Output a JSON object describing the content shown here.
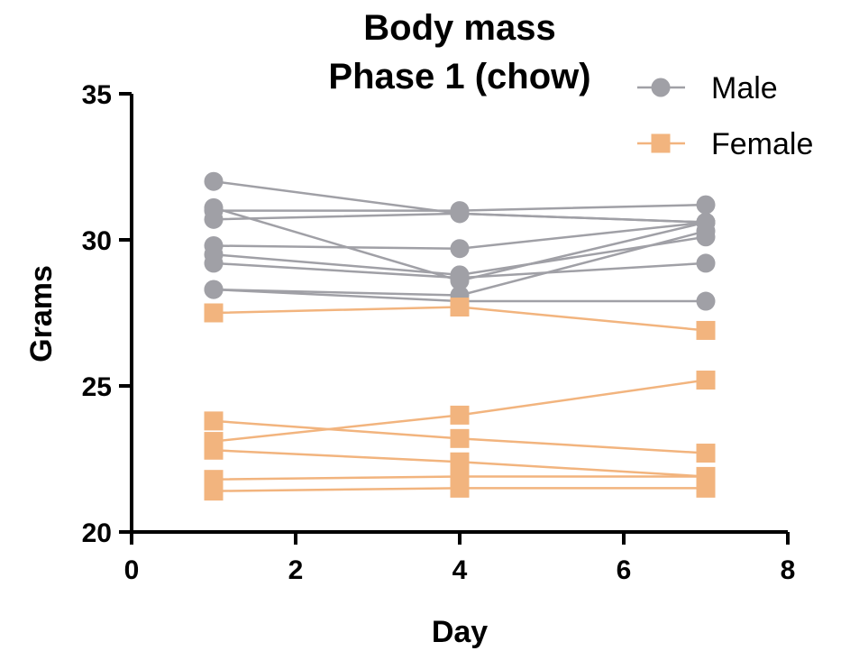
{
  "chart_data": {
    "type": "line",
    "title_line1": "Body mass",
    "title_line2": "Phase 1 (chow)",
    "xlabel": "Day",
    "ylabel": "Grams",
    "xlim": [
      0,
      8
    ],
    "ylim": [
      20,
      35
    ],
    "xticks": [
      "0",
      "2",
      "4",
      "6",
      "8"
    ],
    "yticks": [
      "20",
      "25",
      "30",
      "35"
    ],
    "grid": false,
    "legend_position": "top-right",
    "x": [
      1,
      4,
      7
    ],
    "groups": [
      {
        "name": "Male",
        "color": "#a0a0a6",
        "marker": "circle",
        "lines": [
          [
            32.0,
            30.9,
            30.6
          ],
          [
            31.1,
            28.6,
            30.6
          ],
          [
            31.0,
            31.0,
            31.2
          ],
          [
            30.7,
            30.9,
            30.6
          ],
          [
            29.8,
            29.7,
            30.6
          ],
          [
            29.5,
            28.8,
            30.1
          ],
          [
            29.2,
            28.7,
            29.2
          ],
          [
            28.3,
            28.1,
            30.3
          ],
          [
            28.3,
            27.9,
            27.9
          ]
        ]
      },
      {
        "name": "Female",
        "color": "#f2b47e",
        "marker": "square",
        "lines": [
          [
            27.5,
            27.7,
            26.9
          ],
          [
            23.1,
            24.0,
            25.2
          ],
          [
            23.8,
            23.2,
            22.7
          ],
          [
            22.8,
            22.4,
            21.9
          ],
          [
            21.8,
            21.9,
            21.9
          ],
          [
            21.4,
            21.5,
            21.5
          ]
        ]
      }
    ]
  }
}
